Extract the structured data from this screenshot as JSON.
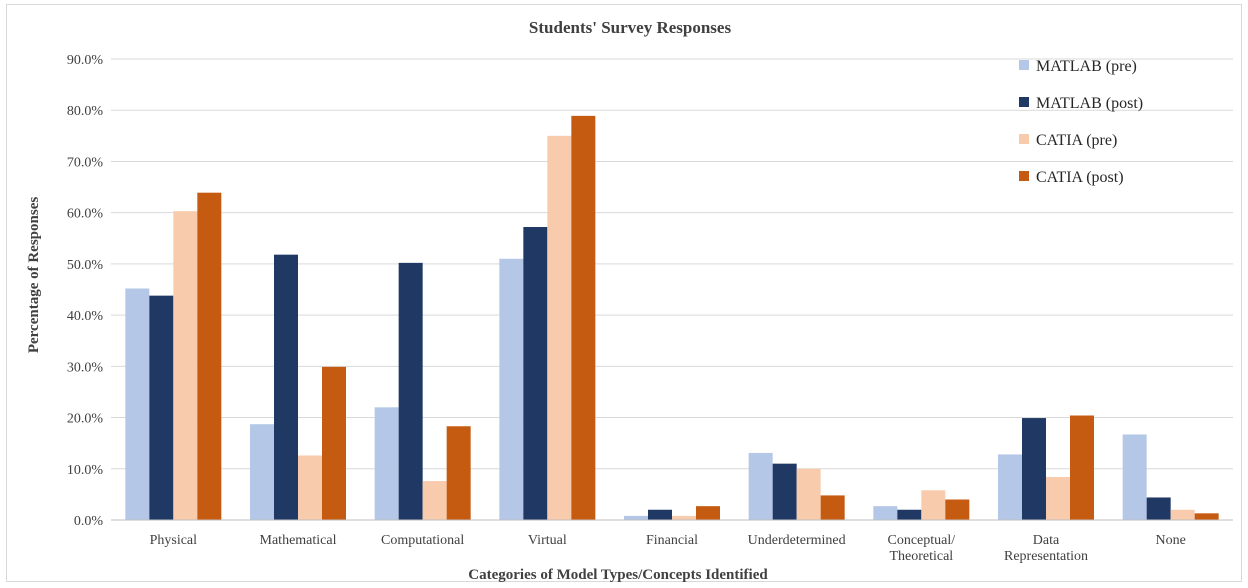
{
  "chart_data": {
    "type": "bar",
    "title": "Students' Survey Responses",
    "xlabel": "Categories of Model Types/Concepts Identified",
    "ylabel": "Percentage of Responses",
    "ylim": [
      0,
      90
    ],
    "yticks": [
      "0.0%",
      "10.0%",
      "20.0%",
      "30.0%",
      "40.0%",
      "50.0%",
      "60.0%",
      "70.0%",
      "80.0%",
      "90.0%"
    ],
    "categories": [
      [
        "Physical"
      ],
      [
        "Mathematical"
      ],
      [
        "Computational"
      ],
      [
        "Virtual"
      ],
      [
        "Financial"
      ],
      [
        "Underdetermined"
      ],
      [
        "Conceptual/",
        "Theoretical"
      ],
      [
        "Data",
        "Representation"
      ],
      [
        "None"
      ]
    ],
    "series": [
      {
        "name": "MATLAB (pre)",
        "color": "#b4c7e7",
        "values": [
          45.2,
          18.7,
          22.0,
          51.0,
          0.8,
          13.1,
          2.7,
          12.8,
          16.7
        ]
      },
      {
        "name": "MATLAB (post)",
        "color": "#203864",
        "values": [
          43.8,
          51.8,
          50.2,
          57.2,
          2.0,
          11.0,
          2.0,
          19.9,
          4.4
        ]
      },
      {
        "name": "CATIA (pre)",
        "color": "#f8cbad",
        "values": [
          60.3,
          12.6,
          7.6,
          75.0,
          0.8,
          10.0,
          5.8,
          8.4,
          2.0
        ]
      },
      {
        "name": "CATIA (post)",
        "color": "#c55a11",
        "values": [
          63.9,
          29.9,
          18.3,
          78.9,
          2.7,
          4.8,
          4.0,
          20.4,
          1.3
        ]
      }
    ],
    "grid": true,
    "legend_position": "top-right"
  }
}
